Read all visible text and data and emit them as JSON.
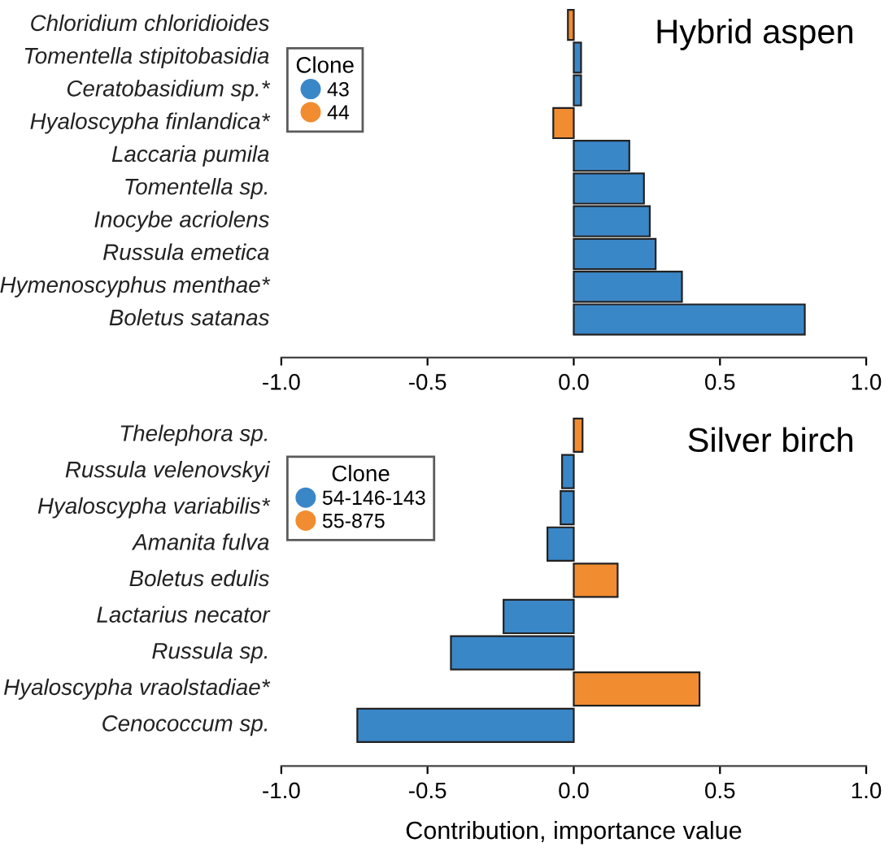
{
  "chart_data": [
    {
      "type": "bar",
      "orientation": "horizontal",
      "title": "Hybrid aspen",
      "legend_title": "Clone",
      "legend": "top left",
      "grid": false,
      "tick_labels": "x",
      "categories": [
        "Chloridium chloridioides",
        "Tomentella stipitobasidia",
        "Ceratobasidium sp.*",
        "Hyaloscypha finlandica*",
        "Laccaria pumila",
        "Tomentella sp.",
        "Inocybe acriolens",
        "Russula emetica",
        "Hymenoscyphus menthae*",
        "Boletus satanas"
      ],
      "series": [
        {
          "name": "43",
          "color": "#3a87c8",
          "values": [
            null,
            0.025,
            0.025,
            null,
            0.19,
            0.24,
            0.26,
            0.28,
            0.37,
            0.79
          ]
        },
        {
          "name": "44",
          "color": "#f28c30",
          "values": [
            -0.02,
            null,
            null,
            -0.07,
            null,
            null,
            null,
            null,
            null,
            null
          ]
        }
      ],
      "xlim": [
        -1,
        1
      ],
      "xticks": [
        {
          "value": -1,
          "label": "-1.0"
        },
        {
          "value": -0.5,
          "label": "-0.5"
        },
        {
          "value": 0,
          "label": "0.0"
        },
        {
          "value": 0.5,
          "label": "0.5"
        },
        {
          "value": 1,
          "label": "1.0"
        }
      ]
    },
    {
      "type": "bar",
      "orientation": "horizontal",
      "title": "Silver birch",
      "legend_title": "Clone",
      "legend": "top left",
      "grid": false,
      "tick_labels": "x",
      "xlabel": "Contribution, importance value",
      "categories": [
        "Thelephora sp.",
        "Russula velenovskyi",
        "Hyaloscypha variabilis*",
        "Amanita fulva",
        "Boletus edulis",
        "Lactarius necator",
        "Russula sp.",
        "Hyaloscypha vraolstadiae*",
        "Cenococcum sp."
      ],
      "series": [
        {
          "name": "54-146-143",
          "color": "#3a87c8",
          "values": [
            null,
            -0.04,
            -0.045,
            -0.09,
            null,
            -0.24,
            -0.42,
            null,
            -0.74
          ]
        },
        {
          "name": "55-875",
          "color": "#f28c30",
          "values": [
            0.03,
            null,
            null,
            null,
            0.15,
            null,
            null,
            0.43,
            null
          ]
        }
      ],
      "xlim": [
        -1,
        1
      ],
      "xticks": [
        {
          "value": -1,
          "label": "-1.0"
        },
        {
          "value": -0.5,
          "label": "-0.5"
        },
        {
          "value": 0,
          "label": "0.0"
        },
        {
          "value": 0.5,
          "label": "0.5"
        },
        {
          "value": 1,
          "label": "1.0"
        }
      ]
    }
  ]
}
